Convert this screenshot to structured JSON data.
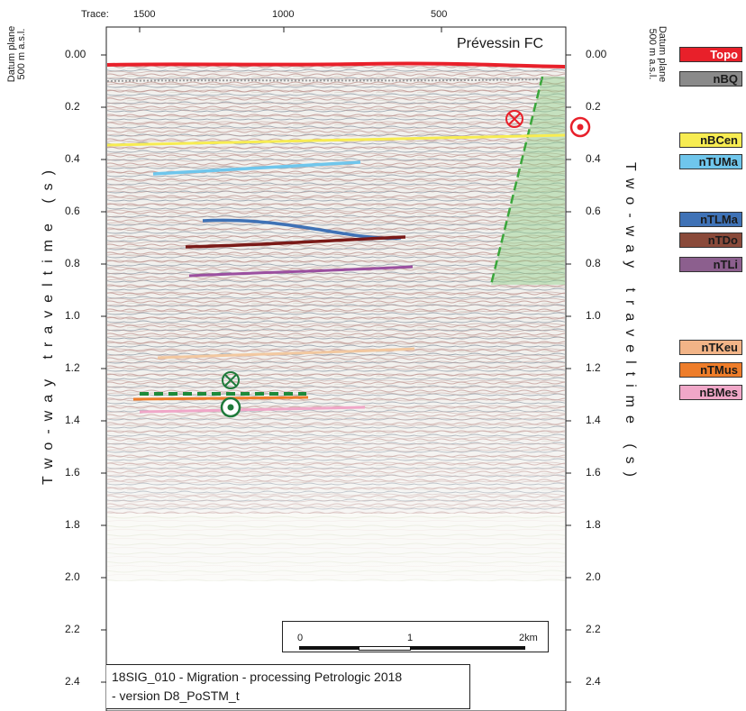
{
  "trace_axis": {
    "label": "Trace:",
    "ticks": [
      "1500",
      "1000",
      "500"
    ]
  },
  "time_axis": {
    "title": "Two-way traveltime (s)",
    "ticks": [
      "0.00",
      "0.2",
      "0.4",
      "0.6",
      "0.8",
      "1.0",
      "1.2",
      "1.4",
      "1.6",
      "1.8",
      "2.0",
      "2.2",
      "2.4"
    ],
    "tick_values": [
      0,
      0.2,
      0.4,
      0.6,
      0.8,
      1.0,
      1.2,
      1.4,
      1.6,
      1.8,
      2.0,
      2.2,
      2.4
    ]
  },
  "datum": {
    "line1": "Datum plane",
    "line2": "500 m a.s.l."
  },
  "fault": {
    "label": "Prévessin FC",
    "color": "#e8202a"
  },
  "legend": [
    {
      "label": "Topo",
      "color": "#e8202a",
      "text_color": "#ffffff"
    },
    {
      "label": "nBQ",
      "color": "#8a8a8a",
      "text_color": "#1a1a1a"
    },
    {
      "label": "nBCen",
      "color": "#f7ec52",
      "text_color": "#1a1a1a"
    },
    {
      "label": "nTUMa",
      "color": "#6fc6ec",
      "text_color": "#1a1a1a"
    },
    {
      "label": "nTLMa",
      "color": "#3f72b6",
      "text_color": "#1a1a1a"
    },
    {
      "label": "nTDo",
      "color": "#8a4a3a",
      "text_color": "#1a1a1a"
    },
    {
      "label": "nTLi",
      "color": "#8c5f8e",
      "text_color": "#1a1a1a"
    },
    {
      "label": "nTKeu",
      "color": "#f2b487",
      "text_color": "#1a1a1a"
    },
    {
      "label": "nTMus",
      "color": "#ee7d2a",
      "text_color": "#1a1a1a"
    },
    {
      "label": "nBMes",
      "color": "#f0a7c8",
      "text_color": "#1a1a1a"
    }
  ],
  "scale": {
    "ticks": [
      "0",
      "1",
      "2km"
    ]
  },
  "caption": {
    "line1": "18SIG_010 - Migration - processing Petrologic 2018",
    "line2": "- version D8_PoSTM_t"
  },
  "colors": {
    "green_marker": "#1e7a3a",
    "fault_green": "#3aa63a"
  }
}
